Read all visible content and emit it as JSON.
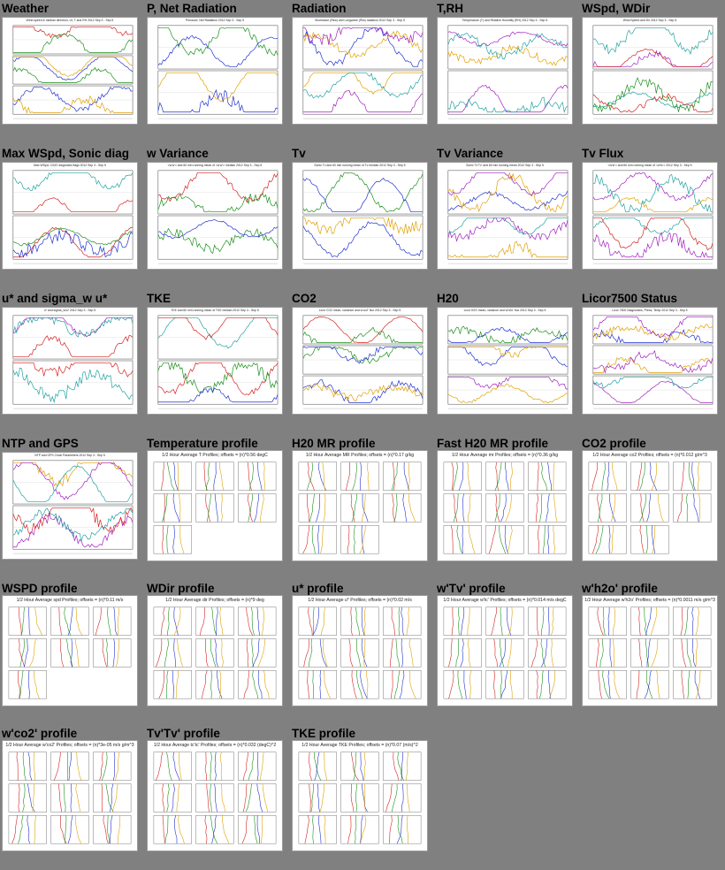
{
  "tiles": [
    {
      "title": "Weather",
      "kind": "ts",
      "panels": 3,
      "caption": "Wind speed & median direction, Ur, T and RH  2012 Sep 3 - Sep 5"
    },
    {
      "title": "P, Net Radiation",
      "kind": "ts",
      "panels": 2,
      "caption": "Pressure, Net Radiation  2012 Sep 3 - Sep 5"
    },
    {
      "title": "Radiation",
      "kind": "ts",
      "panels": 2,
      "caption": "Shortwave (Rsw) and Longwave (Rlw) radiation  2012 Sep 3 - Sep 5"
    },
    {
      "title": "T,RH",
      "kind": "ts",
      "panels": 2,
      "caption": "Temperature (T) and Relative Humidity (RH)  2012 Sep 3 - Sep 5"
    },
    {
      "title": "WSpd, WDir",
      "kind": "ts",
      "panels": 2,
      "caption": "Wind Speed and Dir  2012 Sep 3 - Sep 5"
    },
    {
      "title": "Max WSpd, Sonic diag",
      "kind": "ts",
      "panels": 2,
      "caption": "Max WSpd, CSAT diagnostic flags  2012 Sep 3 - Sep 5"
    },
    {
      "title": "w Variance",
      "kind": "ts",
      "panels": 2,
      "caption": "<w'w'> and 60 min running mean of <w'w'> median  2012 Sep 3 - Sep 5"
    },
    {
      "title": "Tv",
      "kind": "ts",
      "panels": 2,
      "caption": "Sonic Tv and 60 min running mean of Tv median  2012 Sep 3 - Sep 5"
    },
    {
      "title": "Tv Variance",
      "kind": "ts",
      "panels": 2,
      "caption": "Sonic Tv'Tv' and 60 min running mean  2012 Sep 3 - Sep 5"
    },
    {
      "title": "Tv Flux",
      "kind": "ts",
      "panels": 2,
      "caption": "<w'tc'> and 60 min running mean of <w'tc'>  2012 Sep 3 - Sep 5"
    },
    {
      "title": "u* and sigma_w u*",
      "kind": "ts",
      "panels": 2,
      "caption": "u* and sigma_w/u*  2012 Sep 3 - Sep 5"
    },
    {
      "title": "TKE",
      "kind": "ts",
      "panels": 2,
      "caption": "TKE and 60 min running mean of TKE median  2012 Sep 3 - Sep 5"
    },
    {
      "title": "CO2",
      "kind": "ts",
      "panels": 3,
      "caption": "Licor CO2 mean, variance and w'co2' flux  2012 Sep 3 - Sep 5"
    },
    {
      "title": "H20",
      "kind": "ts",
      "panels": 3,
      "caption": "Licor H2O mean, variance and w'h2o' flux  2012 Sep 3 - Sep 5"
    },
    {
      "title": "Licor7500 Status",
      "kind": "ts",
      "panels": 3,
      "caption": "Licor 7500 Diagnostics, Press, Temp  2012 Sep 3 - Sep 5"
    },
    {
      "title": "NTP and GPS",
      "kind": "ts",
      "panels": 2,
      "caption": "NTP and GPS Clock Parameters  2012 Sep 3 - Sep 5"
    },
    {
      "title": "Temperature profile",
      "kind": "profile",
      "rows": [
        3,
        3,
        1
      ],
      "caption": "1/2 Hour Average T Profiles; offsets = (n)*0.56 degC"
    },
    {
      "title": "H20 MR profile",
      "kind": "profile",
      "rows": [
        3,
        3,
        2
      ],
      "caption": "1/2 Hour Average MR Profiles; offsets = (n)*0.17 g/kg"
    },
    {
      "title": "Fast H20 MR profile",
      "kind": "profile",
      "rows": [
        3,
        3,
        3
      ],
      "caption": "1/2 Hour Average mr Profiles; offsets = (n)*0.36 g/kg"
    },
    {
      "title": "CO2 profile",
      "kind": "profile",
      "rows": [
        3,
        3,
        2
      ],
      "caption": "1/2 Hour Average co2 Profiles; offsets = (n)*0.012 g/m^3"
    },
    {
      "title": "WSPD profile",
      "kind": "profile",
      "rows": [
        3,
        3,
        1
      ],
      "caption": "1/2 Hour Average spd Profiles; offsets = (n)*0.11 m/s"
    },
    {
      "title": "WDir profile",
      "kind": "profile",
      "rows": [
        3,
        3,
        3
      ],
      "caption": "1/2 Hour Average dir Profiles; offsets = (n)*9 deg"
    },
    {
      "title": "u* profile",
      "kind": "profile",
      "rows": [
        3,
        3,
        3
      ],
      "caption": "1/2 Hour Average u* Profiles; offsets = (n)*0.02 m/s"
    },
    {
      "title": "w'Tv' profile",
      "kind": "profile",
      "rows": [
        3,
        3,
        3
      ],
      "caption": "1/2 Hour Average w'tc' Profiles; offsets = (n)*0.014 m/s degC"
    },
    {
      "title": "w'h2o' profile",
      "kind": "profile",
      "rows": [
        3,
        3,
        3
      ],
      "caption": "1/2 Hour Average w'h2o' Profiles; offsets = (n)*0.0011 m/s g/m^3"
    },
    {
      "title": "w'co2' profile",
      "kind": "profile",
      "rows": [
        3,
        3,
        3
      ],
      "caption": "1/2 Hour Average w'co2' Profiles; offsets = (n)*3e-05 m/s g/m^3"
    },
    {
      "title": "Tv'Tv' profile",
      "kind": "profile",
      "rows": [
        3,
        3,
        3
      ],
      "caption": "1/2 Hour Average tc'tc' Profiles; offsets = (n)*0.032 (degC)^2"
    },
    {
      "title": "TKE profile",
      "kind": "profile",
      "rows": [
        3,
        3,
        3
      ],
      "caption": "1/2 Hour Average TKE Profiles; offsets = (n)*0.07 (m/s)^2"
    }
  ],
  "colors": {
    "background": "#808080",
    "series": [
      "#d42020",
      "#1a8f1a",
      "#2030d0",
      "#e0a000",
      "#a020c0",
      "#20a0a0"
    ]
  }
}
